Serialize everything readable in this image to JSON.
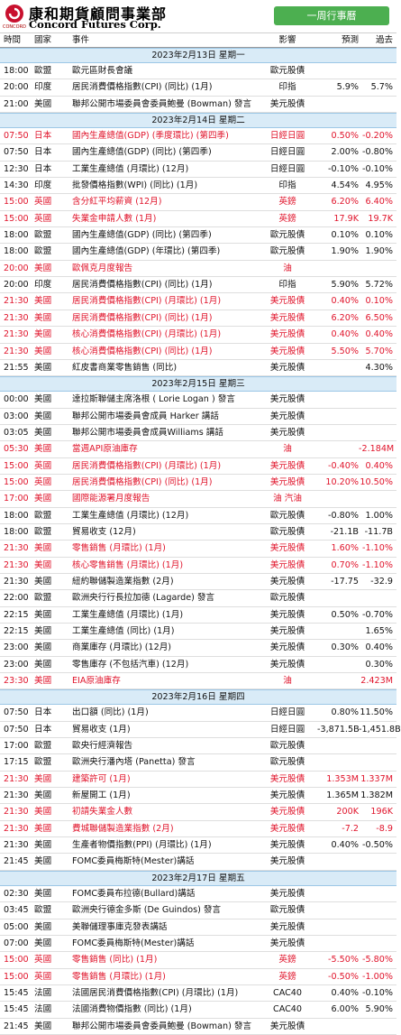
{
  "header": {
    "logo_cn": "康和期貨顧問事業部",
    "logo_en": "Concord Futures Corp.",
    "logo_small": "CONCORD",
    "tag": "一周行事曆"
  },
  "columns": [
    "時間",
    "國家",
    "事件",
    "影響",
    "預測",
    "過去"
  ],
  "days": [
    {
      "date": "2023年2月13日  星期一",
      "rows": [
        {
          "time": "18:00",
          "country": "歐盟",
          "event": "歐元區財長會議",
          "impact": "歐元股債",
          "forecast": "",
          "previous": "",
          "red": false
        },
        {
          "time": "20:00",
          "country": "印度",
          "event": "居民消費價格指數(CPI) (同比) (1月)",
          "impact": "印指",
          "forecast": "5.9%",
          "previous": "5.7%",
          "red": false
        },
        {
          "time": "21:00",
          "country": "美國",
          "event": "聯邦公開市場委員會委員鮑曼 (Bowman) 發言",
          "impact": "美元股債",
          "forecast": "",
          "previous": "",
          "red": false
        }
      ]
    },
    {
      "date": "2023年2月14日  星期二",
      "rows": [
        {
          "time": "07:50",
          "country": "日本",
          "event": "國內生產總值(GDP) (季度環比) (第四季)",
          "impact": "日經日圓",
          "forecast": "0.50%",
          "previous": "-0.20%",
          "red": true
        },
        {
          "time": "07:50",
          "country": "日本",
          "event": "國內生產總值(GDP) (同比) (第四季)",
          "impact": "日經日圓",
          "forecast": "2.00%",
          "previous": "-0.80%",
          "red": false
        },
        {
          "time": "12:30",
          "country": "日本",
          "event": "工業生產總值 (月環比) (12月)",
          "impact": "日經日圓",
          "forecast": "-0.10%",
          "previous": "-0.10%",
          "red": false
        },
        {
          "time": "14:30",
          "country": "印度",
          "event": "批發價格指數(WPI) (同比) (1月)",
          "impact": "印指",
          "forecast": "4.54%",
          "previous": "4.95%",
          "red": false
        },
        {
          "time": "15:00",
          "country": "英國",
          "event": "含分紅平均薪資 (12月)",
          "impact": "英鎊",
          "forecast": "6.20%",
          "previous": "6.40%",
          "red": true
        },
        {
          "time": "15:00",
          "country": "英國",
          "event": "失業金申請人數 (1月)",
          "impact": "英鎊",
          "forecast": "17.9K",
          "previous": "19.7K",
          "red": true
        },
        {
          "time": "18:00",
          "country": "歐盟",
          "event": "國內生產總值(GDP) (同比) (第四季)",
          "impact": "歐元股債",
          "forecast": "0.10%",
          "previous": "0.10%",
          "red": false
        },
        {
          "time": "18:00",
          "country": "歐盟",
          "event": "國內生產總值(GDP) (年環比) (第四季)",
          "impact": "歐元股債",
          "forecast": "1.90%",
          "previous": "1.90%",
          "red": false
        },
        {
          "time": "20:00",
          "country": "美國",
          "event": "歐佩克月度報告",
          "impact": "油",
          "forecast": "",
          "previous": "",
          "red": true
        },
        {
          "time": "20:00",
          "country": "印度",
          "event": "居民消費價格指數(CPI) (同比) (1月)",
          "impact": "印指",
          "forecast": "5.90%",
          "previous": "5.72%",
          "red": false
        },
        {
          "time": "21:30",
          "country": "美國",
          "event": "居民消費價格指數(CPI) (月環比) (1月)",
          "impact": "美元股債",
          "forecast": "0.40%",
          "previous": "0.10%",
          "red": true
        },
        {
          "time": "21:30",
          "country": "美國",
          "event": "居民消費價格指數(CPI) (同比) (1月)",
          "impact": "美元股債",
          "forecast": "6.20%",
          "previous": "6.50%",
          "red": true
        },
        {
          "time": "21:30",
          "country": "美國",
          "event": "核心消費價格指數(CPI) (月環比) (1月)",
          "impact": "美元股債",
          "forecast": "0.40%",
          "previous": "0.40%",
          "red": true
        },
        {
          "time": "21:30",
          "country": "美國",
          "event": "核心消費價格指數(CPI) (同比) (1月)",
          "impact": "美元股債",
          "forecast": "5.50%",
          "previous": "5.70%",
          "red": true
        },
        {
          "time": "21:55",
          "country": "美國",
          "event": "紅皮書商業零售銷售 (同比)",
          "impact": "美元股債",
          "forecast": "",
          "previous": "4.30%",
          "red": false
        }
      ]
    },
    {
      "date": "2023年2月15日  星期三",
      "rows": [
        {
          "time": "00:00",
          "country": "美國",
          "event": "達拉斯聯儲主席洛根 ( Lorie Logan ) 發言",
          "impact": "美元股債",
          "forecast": "",
          "previous": "",
          "red": false
        },
        {
          "time": "03:00",
          "country": "美國",
          "event": "聯邦公開市場委員會成員 Harker 講話",
          "impact": "美元股債",
          "forecast": "",
          "previous": "",
          "red": false
        },
        {
          "time": "03:05",
          "country": "美國",
          "event": "聯邦公開市場委員會成員Williams 講話",
          "impact": "美元股債",
          "forecast": "",
          "previous": "",
          "red": false
        },
        {
          "time": "05:30",
          "country": "美國",
          "event": "當週API原油庫存",
          "impact": "油",
          "forecast": "",
          "previous": "-2.184M",
          "red": true
        },
        {
          "time": "15:00",
          "country": "英國",
          "event": "居民消費價格指數(CPI) (月環比) (1月)",
          "impact": "美元股債",
          "forecast": "-0.40%",
          "previous": "0.40%",
          "red": true
        },
        {
          "time": "15:00",
          "country": "英國",
          "event": "居民消費價格指數(CPI) (同比) (1月)",
          "impact": "美元股債",
          "forecast": "10.20%",
          "previous": "10.50%",
          "red": true
        },
        {
          "time": "17:00",
          "country": "美國",
          "event": "國際能源署月度報告",
          "impact": "油 汽油",
          "forecast": "",
          "previous": "",
          "red": true
        },
        {
          "time": "18:00",
          "country": "歐盟",
          "event": "工業生產總值 (月環比) (12月)",
          "impact": "歐元股債",
          "forecast": "-0.80%",
          "previous": "1.00%",
          "red": false
        },
        {
          "time": "18:00",
          "country": "歐盟",
          "event": "貿易收支 (12月)",
          "impact": "歐元股債",
          "forecast": "-21.1B",
          "previous": "-11.7B",
          "red": false
        },
        {
          "time": "21:30",
          "country": "美國",
          "event": "零售銷售 (月環比) (1月)",
          "impact": "美元股債",
          "forecast": "1.60%",
          "previous": "-1.10%",
          "red": true
        },
        {
          "time": "21:30",
          "country": "美國",
          "event": "核心零售銷售 (月環比) (1月)",
          "impact": "美元股債",
          "forecast": "0.70%",
          "previous": "-1.10%",
          "red": true
        },
        {
          "time": "21:30",
          "country": "美國",
          "event": "紐約聯儲製造業指數 (2月)",
          "impact": "美元股債",
          "forecast": "-17.75",
          "previous": "-32.9",
          "red": false
        },
        {
          "time": "22:00",
          "country": "歐盟",
          "event": "歐洲央行行長拉加德 (Lagarde) 發言",
          "impact": "歐元股債",
          "forecast": "",
          "previous": "",
          "red": false
        },
        {
          "time": "22:15",
          "country": "美國",
          "event": "工業生產總值 (月環比) (1月)",
          "impact": "美元股債",
          "forecast": "0.50%",
          "previous": "-0.70%",
          "red": false
        },
        {
          "time": "22:15",
          "country": "美國",
          "event": "工業生產總值 (同比) (1月)",
          "impact": "美元股債",
          "forecast": "",
          "previous": "1.65%",
          "red": false
        },
        {
          "time": "23:00",
          "country": "美國",
          "event": "商業庫存 (月環比) (12月)",
          "impact": "美元股債",
          "forecast": "0.30%",
          "previous": "0.40%",
          "red": false
        },
        {
          "time": "23:00",
          "country": "美國",
          "event": "零售庫存 (不包括汽車) (12月)",
          "impact": "美元股債",
          "forecast": "",
          "previous": "0.30%",
          "red": false
        },
        {
          "time": "23:30",
          "country": "美國",
          "event": "EIA原油庫存",
          "impact": "油",
          "forecast": "",
          "previous": "2.423M",
          "red": true
        }
      ]
    },
    {
      "date": "2023年2月16日  星期四",
      "rows": [
        {
          "time": "07:50",
          "country": "日本",
          "event": "出口額 (同比) (1月)",
          "impact": "日經日圓",
          "forecast": "0.80%",
          "previous": "11.50%",
          "red": false
        },
        {
          "time": "07:50",
          "country": "日本",
          "event": "貿易收支 (1月)",
          "impact": "日經日圓",
          "forecast": "-3,871.5B",
          "previous": "-1,451.8B",
          "red": false
        },
        {
          "time": "17:00",
          "country": "歐盟",
          "event": "歐央行經濟報告",
          "impact": "歐元股債",
          "forecast": "",
          "previous": "",
          "red": false
        },
        {
          "time": "17:15",
          "country": "歐盟",
          "event": "歐洲央行潘內塔 (Panetta) 發言",
          "impact": "歐元股債",
          "forecast": "",
          "previous": "",
          "red": false
        },
        {
          "time": "21:30",
          "country": "美國",
          "event": "建築許可 (1月)",
          "impact": "美元股債",
          "forecast": "1.353M",
          "previous": "1.337M",
          "red": true
        },
        {
          "time": "21:30",
          "country": "美國",
          "event": "新屋開工 (1月)",
          "impact": "美元股債",
          "forecast": "1.365M",
          "previous": "1.382M",
          "red": false
        },
        {
          "time": "21:30",
          "country": "美國",
          "event": "初請失業金人數",
          "impact": "美元股債",
          "forecast": "200K",
          "previous": "196K",
          "red": true
        },
        {
          "time": "21:30",
          "country": "美國",
          "event": "費城聯儲製造業指數 (2月)",
          "impact": "美元股債",
          "forecast": "-7.2",
          "previous": "-8.9",
          "red": true
        },
        {
          "time": "21:30",
          "country": "美國",
          "event": "生產者物價指數(PPI) (月環比) (1月)",
          "impact": "美元股債",
          "forecast": "0.40%",
          "previous": "-0.50%",
          "red": false
        },
        {
          "time": "21:45",
          "country": "美國",
          "event": "FOMC委員梅斯特(Mester)講話",
          "impact": "美元股債",
          "forecast": "",
          "previous": "",
          "red": false
        }
      ]
    },
    {
      "date": "2023年2月17日  星期五",
      "rows": [
        {
          "time": "02:30",
          "country": "美國",
          "event": "FOMC委員布拉德(Bullard)講話",
          "impact": "美元股債",
          "forecast": "",
          "previous": "",
          "red": false
        },
        {
          "time": "03:45",
          "country": "歐盟",
          "event": "歐洲央行德金多斯 (De Guindos) 發言",
          "impact": "歐元股債",
          "forecast": "",
          "previous": "",
          "red": false
        },
        {
          "time": "05:00",
          "country": "美國",
          "event": "美聯儲理事庫克發表講話",
          "impact": "美元股債",
          "forecast": "",
          "previous": "",
          "red": false
        },
        {
          "time": "07:00",
          "country": "美國",
          "event": "FOMC委員梅斯特(Mester)講話",
          "impact": "美元股債",
          "forecast": "",
          "previous": "",
          "red": false
        },
        {
          "time": "15:00",
          "country": "英國",
          "event": "零售銷售 (同比) (1月)",
          "impact": "英鎊",
          "forecast": "-5.50%",
          "previous": "-5.80%",
          "red": true
        },
        {
          "time": "15:00",
          "country": "英國",
          "event": "零售銷售 (月環比) (1月)",
          "impact": "英鎊",
          "forecast": "-0.50%",
          "previous": "-1.00%",
          "red": true
        },
        {
          "time": "15:45",
          "country": "法國",
          "event": "法國居民消費價格指數(CPI) (月環比) (1月)",
          "impact": "CAC40",
          "forecast": "0.40%",
          "previous": "-0.10%",
          "red": false
        },
        {
          "time": "15:45",
          "country": "法國",
          "event": "法國消費物價指數 (同比) (1月)",
          "impact": "CAC40",
          "forecast": "6.00%",
          "previous": "5.90%",
          "red": false
        },
        {
          "time": "21:45",
          "country": "美國",
          "event": "聯邦公開市場委員會委員鮑曼 (Bowman) 發言",
          "impact": "美元股債",
          "forecast": "",
          "previous": "",
          "red": false
        }
      ]
    }
  ]
}
